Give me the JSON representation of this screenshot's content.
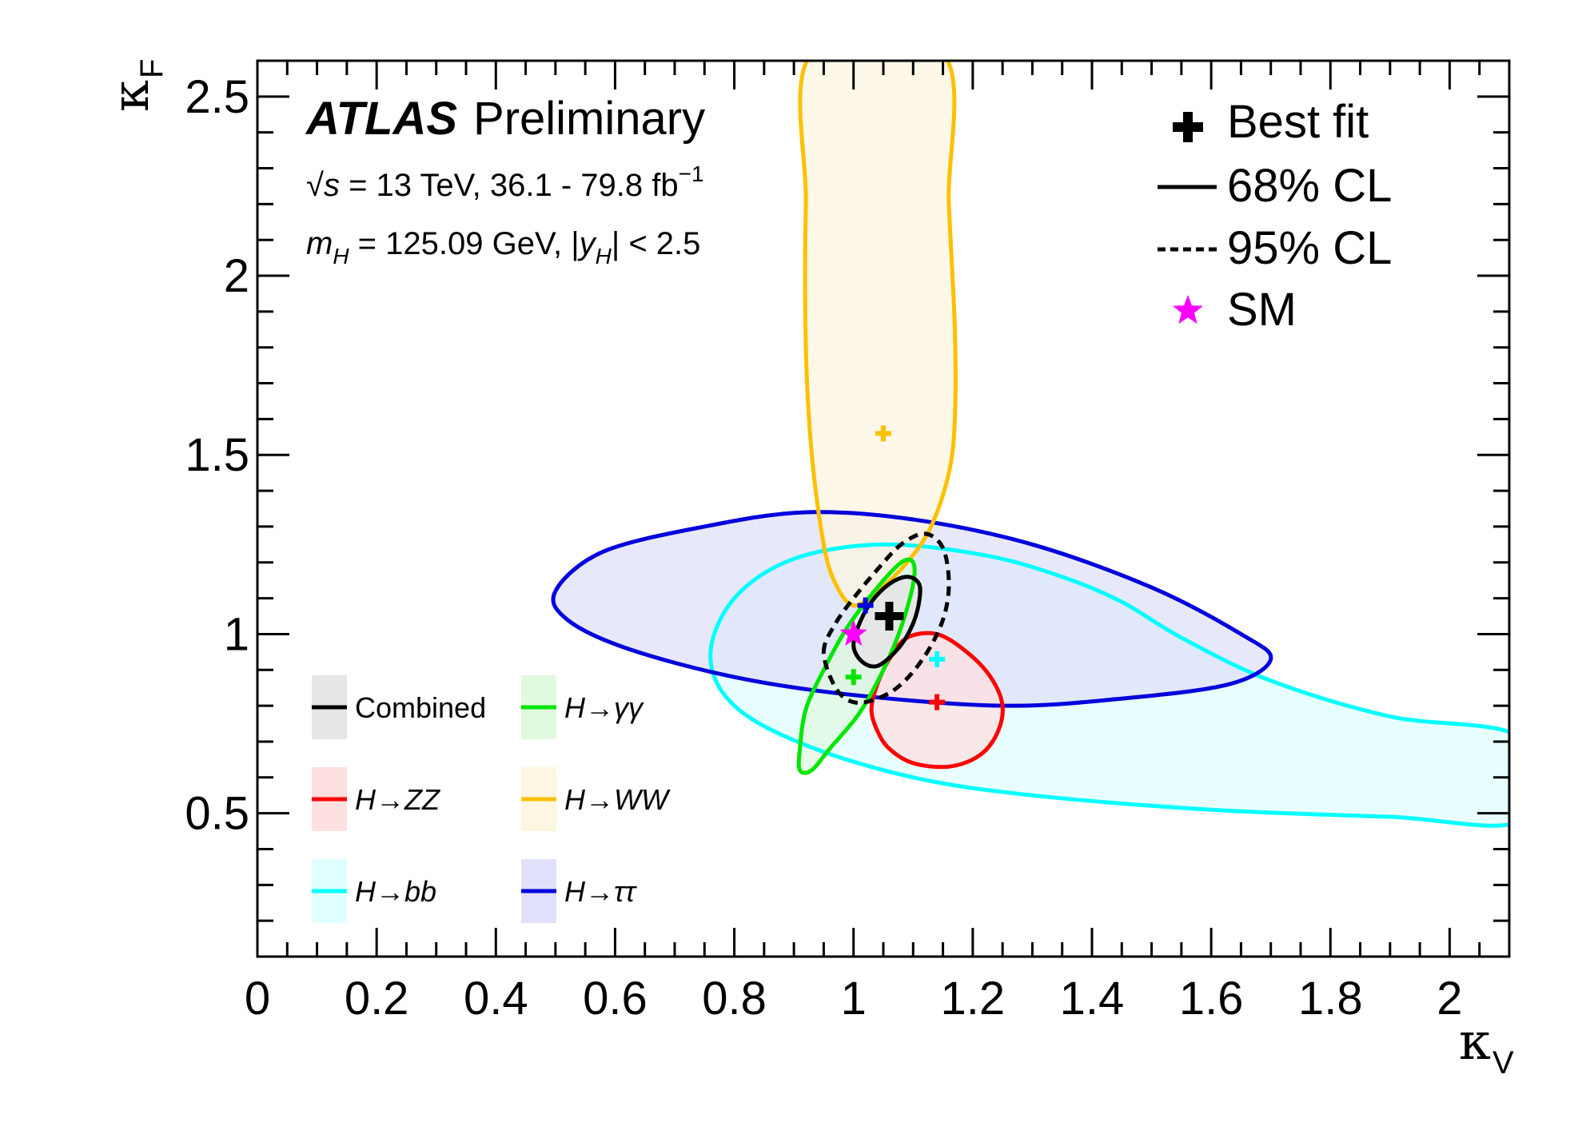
{
  "chart_data": {
    "type": "contour",
    "xlabel": "κ",
    "xlabel_sub": "V",
    "ylabel": "κ",
    "ylabel_sub": "F",
    "xlim": [
      0,
      2.1
    ],
    "ylim": [
      0.1,
      2.6
    ],
    "x_ticks": [
      0,
      0.2,
      0.4,
      0.6,
      0.8,
      1,
      1.2,
      1.4,
      1.6,
      1.8,
      2
    ],
    "x_tick_labels": [
      "0",
      "0.2",
      "0.4",
      "0.6",
      "0.8",
      "1",
      "1.2",
      "1.4",
      "1.6",
      "1.8",
      "2"
    ],
    "y_ticks": [
      0.5,
      1,
      1.5,
      2,
      2.5
    ],
    "y_tick_labels": [
      "0.5",
      "1",
      "1.5",
      "2",
      "2.5"
    ],
    "annotations": {
      "atlas": "ATLAS",
      "preliminary": "Preliminary",
      "sqrt_s_symbol": "√",
      "sqrt_s_var": "s",
      "energy_text": " = 13 TeV, 36.1 - 79.8 fb",
      "lumi_exp": "−1",
      "mass_var": "m",
      "mass_sub": "H",
      "mass_text": " = 125.09 GeV, |",
      "rap_var": "y",
      "rap_sub": "H",
      "rap_text": "| < 2.5"
    },
    "legend_main": {
      "best_fit": "Best fit",
      "cl68": "68% CL",
      "cl95": "95% CL",
      "sm": "SM"
    },
    "sm_point": {
      "x": 1.0,
      "y": 1.0,
      "color": "#ff00ff"
    },
    "series": [
      {
        "name": "Combined",
        "label": "Combined",
        "italic": false,
        "color": "#000000",
        "fill": "#e6e6e6",
        "best_fit": {
          "x": 1.06,
          "y": 1.05
        },
        "contour68": [
          [
            1.0,
            0.97
          ],
          [
            1.01,
            1.03
          ],
          [
            1.03,
            1.09
          ],
          [
            1.06,
            1.14
          ],
          [
            1.09,
            1.16
          ],
          [
            1.11,
            1.14
          ],
          [
            1.11,
            1.09
          ],
          [
            1.1,
            1.03
          ],
          [
            1.08,
            0.97
          ],
          [
            1.05,
            0.92
          ],
          [
            1.03,
            0.91
          ],
          [
            1.01,
            0.93
          ]
        ],
        "contour95": [
          [
            0.95,
            0.95
          ],
          [
            0.97,
            1.03
          ],
          [
            1.0,
            1.1
          ],
          [
            1.04,
            1.18
          ],
          [
            1.08,
            1.25
          ],
          [
            1.12,
            1.28
          ],
          [
            1.15,
            1.24
          ],
          [
            1.16,
            1.14
          ],
          [
            1.15,
            1.04
          ],
          [
            1.12,
            0.94
          ],
          [
            1.08,
            0.86
          ],
          [
            1.04,
            0.82
          ],
          [
            1.0,
            0.81
          ],
          [
            0.97,
            0.85
          ]
        ]
      },
      {
        "name": "H→γγ",
        "label": "H→γγ",
        "italic": true,
        "color": "#00e600",
        "fill": "#e0fae0",
        "best_fit": {
          "x": 1.0,
          "y": 0.88
        },
        "contour68": [
          [
            0.91,
            0.68
          ],
          [
            0.92,
            0.79
          ],
          [
            0.95,
            0.9
          ],
          [
            0.99,
            1.02
          ],
          [
            1.04,
            1.13
          ],
          [
            1.08,
            1.2
          ],
          [
            1.1,
            1.2
          ],
          [
            1.1,
            1.14
          ],
          [
            1.08,
            1.02
          ],
          [
            1.05,
            0.9
          ],
          [
            1.01,
            0.78
          ],
          [
            0.96,
            0.68
          ],
          [
            0.93,
            0.62
          ],
          [
            0.91,
            0.62
          ]
        ]
      },
      {
        "name": "H→ZZ",
        "label": "H→ZZ",
        "italic": true,
        "color": "#ff0000",
        "fill": "#ffe0e0",
        "best_fit": {
          "x": 1.14,
          "y": 0.81
        },
        "contour68": [
          [
            1.03,
            0.79
          ],
          [
            1.04,
            0.86
          ],
          [
            1.06,
            0.93
          ],
          [
            1.09,
            0.99
          ],
          [
            1.14,
            1.0
          ],
          [
            1.19,
            0.95
          ],
          [
            1.23,
            0.88
          ],
          [
            1.25,
            0.8
          ],
          [
            1.24,
            0.72
          ],
          [
            1.21,
            0.66
          ],
          [
            1.16,
            0.63
          ],
          [
            1.1,
            0.64
          ],
          [
            1.06,
            0.68
          ],
          [
            1.04,
            0.73
          ]
        ]
      },
      {
        "name": "H→WW",
        "label": "H→WW",
        "italic": true,
        "color": "#ffc000",
        "fill": "#fdf6e0",
        "best_fit": {
          "x": 1.05,
          "y": 1.56
        },
        "contour68": [
          [
            0.93,
            2.62
          ],
          [
            0.92,
            2.2
          ],
          [
            0.92,
            1.8
          ],
          [
            0.93,
            1.5
          ],
          [
            0.95,
            1.25
          ],
          [
            0.97,
            1.14
          ],
          [
            1.0,
            1.08
          ],
          [
            1.04,
            1.12
          ],
          [
            1.09,
            1.2
          ],
          [
            1.13,
            1.3
          ],
          [
            1.16,
            1.45
          ],
          [
            1.17,
            1.6
          ],
          [
            1.17,
            1.85
          ],
          [
            1.16,
            2.2
          ],
          [
            1.15,
            2.62
          ]
        ]
      },
      {
        "name": "H→bb",
        "label": "H→bb",
        "italic": true,
        "color": "#00ffff",
        "fill": "#e0ffff",
        "best_fit": {
          "x": 1.14,
          "y": 0.93
        },
        "contour68": [
          [
            2.12,
            0.71
          ],
          [
            1.9,
            0.77
          ],
          [
            1.7,
            0.87
          ],
          [
            1.55,
            0.99
          ],
          [
            1.45,
            1.09
          ],
          [
            1.35,
            1.16
          ],
          [
            1.22,
            1.22
          ],
          [
            1.05,
            1.25
          ],
          [
            0.9,
            1.21
          ],
          [
            0.8,
            1.1
          ],
          [
            0.76,
            0.94
          ],
          [
            0.8,
            0.8
          ],
          [
            0.92,
            0.69
          ],
          [
            1.1,
            0.6
          ],
          [
            1.3,
            0.55
          ],
          [
            1.6,
            0.51
          ],
          [
            1.9,
            0.49
          ],
          [
            2.12,
            0.48
          ]
        ]
      },
      {
        "name": "H→ττ",
        "label": "H→ττ",
        "italic": true,
        "color": "#0000dd",
        "fill": "#e0e0fa",
        "best_fit": {
          "x": 1.02,
          "y": 1.08
        },
        "contour68": [
          [
            0.5,
            1.12
          ],
          [
            0.58,
            1.23
          ],
          [
            0.75,
            1.3
          ],
          [
            0.92,
            1.34
          ],
          [
            1.1,
            1.32
          ],
          [
            1.3,
            1.25
          ],
          [
            1.5,
            1.13
          ],
          [
            1.65,
            1.0
          ],
          [
            1.7,
            0.93
          ],
          [
            1.63,
            0.86
          ],
          [
            1.45,
            0.82
          ],
          [
            1.25,
            0.8
          ],
          [
            1.0,
            0.83
          ],
          [
            0.8,
            0.88
          ],
          [
            0.62,
            0.96
          ],
          [
            0.52,
            1.04
          ]
        ]
      }
    ]
  }
}
